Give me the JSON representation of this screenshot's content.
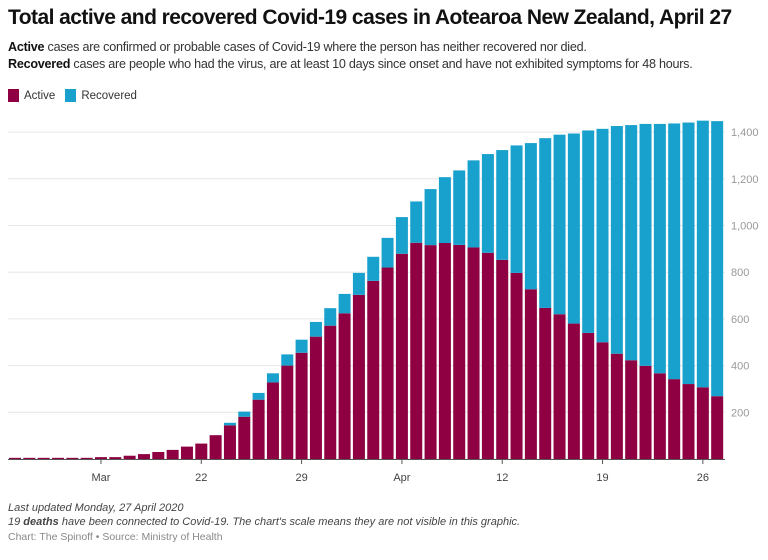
{
  "title": "Total active and recovered Covid-19 cases in Aotearoa New Zealand, April 27",
  "description": [
    {
      "bold": "Active",
      "text": " cases are confirmed or probable cases of Covid-19 where the person has neither recovered nor died."
    },
    {
      "bold": "Recovered",
      "text": " cases are people who had the virus, are at least 10 days since onset and have not exhibited symptoms for 48 hours."
    }
  ],
  "footer": {
    "updated": "Last updated Monday, 27 April 2020",
    "deaths_prefix": "19 ",
    "deaths_bold": "deaths",
    "deaths_suffix": " have been connected to Covid-19. The chart's scale means they are not visible in this graphic.",
    "credit": "Chart: The Spinoff • Source: Ministry of Health"
  },
  "colors": {
    "active": "#8e0041",
    "recovered": "#19a1cd",
    "grid": "#e6e6e6",
    "axis": "#555555",
    "tick_label": "#999999"
  },
  "chart_data": {
    "type": "bar",
    "stacked": true,
    "legend_position": "top-left",
    "grid": true,
    "y_axis_side": "right",
    "ylim": [
      0,
      1450
    ],
    "y_ticks": [
      200,
      400,
      600,
      800,
      1000,
      1200,
      1400
    ],
    "y_tick_labels": [
      "200",
      "400",
      "600",
      "800",
      "1,000",
      "1,200",
      "1,400"
    ],
    "x_tick_labels": [
      {
        "date": "2020-03-15",
        "label": "Mar"
      },
      {
        "date": "2020-03-22",
        "label": "22"
      },
      {
        "date": "2020-03-29",
        "label": "29"
      },
      {
        "date": "2020-04-05",
        "label": "Apr"
      },
      {
        "date": "2020-04-12",
        "label": "12"
      },
      {
        "date": "2020-04-19",
        "label": "19"
      },
      {
        "date": "2020-04-26",
        "label": "26"
      }
    ],
    "dates": [
      "2020-03-09",
      "2020-03-10",
      "2020-03-11",
      "2020-03-12",
      "2020-03-13",
      "2020-03-14",
      "2020-03-15",
      "2020-03-16",
      "2020-03-17",
      "2020-03-18",
      "2020-03-19",
      "2020-03-20",
      "2020-03-21",
      "2020-03-22",
      "2020-03-23",
      "2020-03-24",
      "2020-03-25",
      "2020-03-26",
      "2020-03-27",
      "2020-03-28",
      "2020-03-29",
      "2020-03-30",
      "2020-03-31",
      "2020-04-01",
      "2020-04-02",
      "2020-04-03",
      "2020-04-04",
      "2020-04-05",
      "2020-04-06",
      "2020-04-07",
      "2020-04-08",
      "2020-04-09",
      "2020-04-10",
      "2020-04-11",
      "2020-04-12",
      "2020-04-13",
      "2020-04-14",
      "2020-04-15",
      "2020-04-16",
      "2020-04-17",
      "2020-04-18",
      "2020-04-19",
      "2020-04-20",
      "2020-04-21",
      "2020-04-22",
      "2020-04-23",
      "2020-04-24",
      "2020-04-25",
      "2020-04-26",
      "2020-04-27"
    ],
    "series": [
      {
        "name": "Active",
        "color": "#8e0041",
        "values": [
          5,
          5,
          5,
          5,
          5,
          5,
          8,
          8,
          14,
          21,
          30,
          39,
          53,
          66,
          102,
          144,
          181,
          254,
          328,
          400,
          455,
          524,
          571,
          624,
          703,
          763,
          820,
          879,
          926,
          916,
          925,
          917,
          906,
          883,
          853,
          797,
          727,
          647,
          620,
          580,
          540,
          500,
          451,
          423,
          399,
          367,
          342,
          321,
          307,
          269
        ]
      },
      {
        "name": "Recovered",
        "color": "#19a1cd",
        "values": [
          0,
          0,
          0,
          0,
          0,
          0,
          0,
          0,
          0,
          0,
          0,
          0,
          0,
          0,
          0,
          11,
          22,
          29,
          39,
          48,
          56,
          63,
          75,
          83,
          94,
          103,
          127,
          157,
          177,
          240,
          282,
          319,
          373,
          423,
          470,
          546,
          626,
          727,
          769,
          814,
          867,
          914,
          975,
          1007,
          1036,
          1068,
          1095,
          1120,
          1142,
          1178
        ]
      }
    ]
  }
}
